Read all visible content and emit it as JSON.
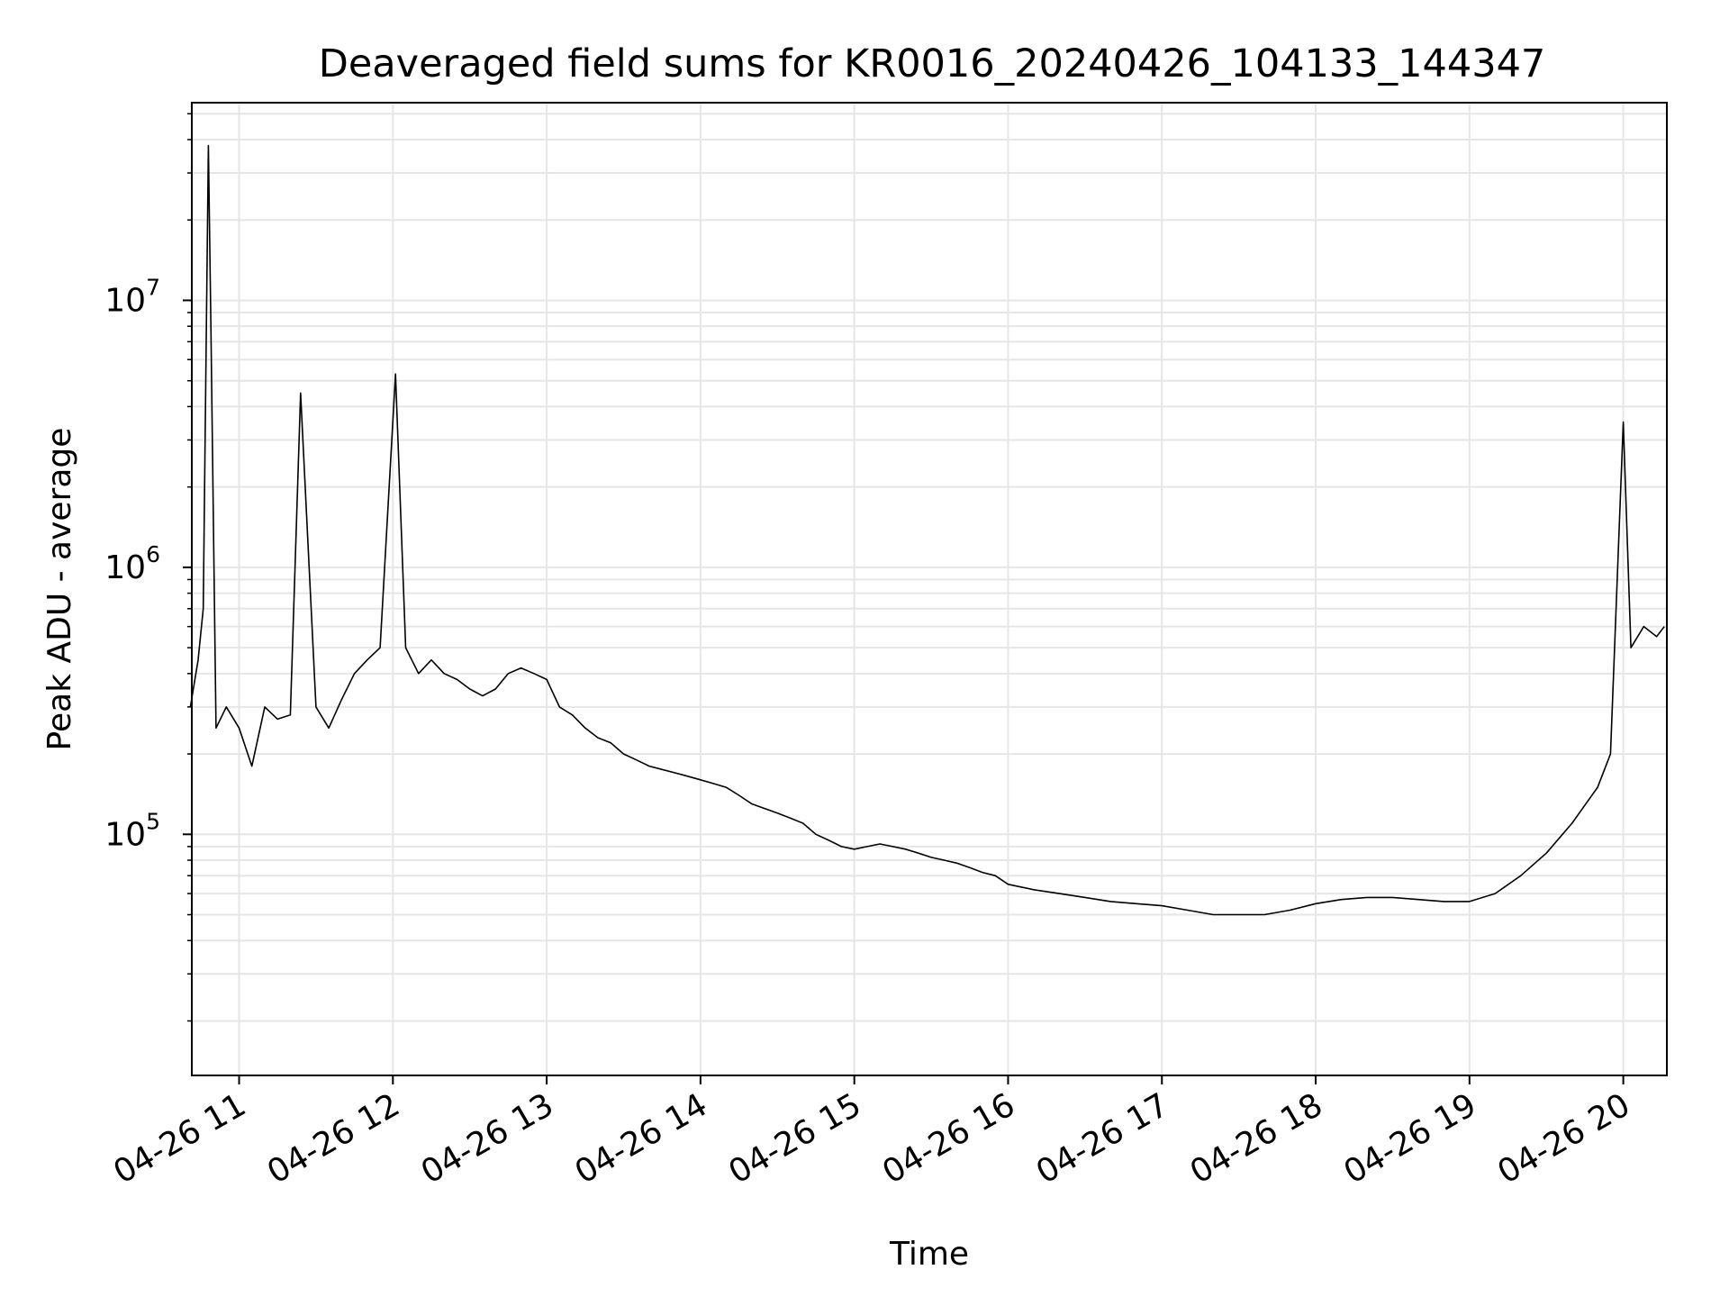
{
  "chart_data": {
    "type": "line",
    "title": "Deaveraged field sums for KR0016_20240426_104133_144347",
    "xlabel": "Time",
    "ylabel": "Peak ADU - average",
    "yscale": "log",
    "grid": true,
    "line_color": "#000000",
    "grid_color": "#e6e6e6",
    "xlim": [
      "2024-04-26T10:41:33",
      "2024-04-26T20:17:00"
    ],
    "ylim": [
      12500,
      55000000
    ],
    "x_ticks": [
      {
        "t": "2024-04-26T11:00",
        "label": "04-26 11"
      },
      {
        "t": "2024-04-26T12:00",
        "label": "04-26 12"
      },
      {
        "t": "2024-04-26T13:00",
        "label": "04-26 13"
      },
      {
        "t": "2024-04-26T14:00",
        "label": "04-26 14"
      },
      {
        "t": "2024-04-26T15:00",
        "label": "04-26 15"
      },
      {
        "t": "2024-04-26T16:00",
        "label": "04-26 16"
      },
      {
        "t": "2024-04-26T17:00",
        "label": "04-26 17"
      },
      {
        "t": "2024-04-26T18:00",
        "label": "04-26 18"
      },
      {
        "t": "2024-04-26T19:00",
        "label": "04-26 19"
      },
      {
        "t": "2024-04-26T20:00",
        "label": "04-26 20"
      }
    ],
    "y_ticks": [
      {
        "value": 100000,
        "base": "10",
        "exp": "5"
      },
      {
        "value": 1000000,
        "base": "10",
        "exp": "6"
      },
      {
        "value": 10000000,
        "base": "10",
        "exp": "7"
      }
    ],
    "series": [
      {
        "points": [
          [
            "2024-04-26T10:41",
            300000
          ],
          [
            "2024-04-26T10:44",
            450000
          ],
          [
            "2024-04-26T10:46",
            700000
          ],
          [
            "2024-04-26T10:48",
            38000000
          ],
          [
            "2024-04-26T10:49",
            8000000
          ],
          [
            "2024-04-26T10:51",
            250000
          ],
          [
            "2024-04-26T10:55",
            300000
          ],
          [
            "2024-04-26T11:00",
            250000
          ],
          [
            "2024-04-26T11:05",
            180000
          ],
          [
            "2024-04-26T11:10",
            300000
          ],
          [
            "2024-04-26T11:15",
            270000
          ],
          [
            "2024-04-26T11:20",
            280000
          ],
          [
            "2024-04-26T11:24",
            4500000
          ],
          [
            "2024-04-26T11:30",
            300000
          ],
          [
            "2024-04-26T11:35",
            250000
          ],
          [
            "2024-04-26T11:40",
            320000
          ],
          [
            "2024-04-26T11:45",
            400000
          ],
          [
            "2024-04-26T11:50",
            450000
          ],
          [
            "2024-04-26T11:55",
            500000
          ],
          [
            "2024-04-26T12:01",
            5300000
          ],
          [
            "2024-04-26T12:05",
            500000
          ],
          [
            "2024-04-26T12:10",
            400000
          ],
          [
            "2024-04-26T12:15",
            450000
          ],
          [
            "2024-04-26T12:20",
            400000
          ],
          [
            "2024-04-26T12:25",
            380000
          ],
          [
            "2024-04-26T12:30",
            350000
          ],
          [
            "2024-04-26T12:35",
            330000
          ],
          [
            "2024-04-26T12:40",
            350000
          ],
          [
            "2024-04-26T12:45",
            400000
          ],
          [
            "2024-04-26T12:50",
            420000
          ],
          [
            "2024-04-26T12:55",
            400000
          ],
          [
            "2024-04-26T13:00",
            380000
          ],
          [
            "2024-04-26T13:05",
            300000
          ],
          [
            "2024-04-26T13:10",
            280000
          ],
          [
            "2024-04-26T13:15",
            250000
          ],
          [
            "2024-04-26T13:20",
            230000
          ],
          [
            "2024-04-26T13:25",
            220000
          ],
          [
            "2024-04-26T13:30",
            200000
          ],
          [
            "2024-04-26T13:35",
            190000
          ],
          [
            "2024-04-26T13:40",
            180000
          ],
          [
            "2024-04-26T13:45",
            175000
          ],
          [
            "2024-04-26T13:50",
            170000
          ],
          [
            "2024-04-26T13:55",
            165000
          ],
          [
            "2024-04-26T14:00",
            160000
          ],
          [
            "2024-04-26T14:05",
            155000
          ],
          [
            "2024-04-26T14:10",
            150000
          ],
          [
            "2024-04-26T14:15",
            140000
          ],
          [
            "2024-04-26T14:20",
            130000
          ],
          [
            "2024-04-26T14:25",
            125000
          ],
          [
            "2024-04-26T14:30",
            120000
          ],
          [
            "2024-04-26T14:35",
            115000
          ],
          [
            "2024-04-26T14:40",
            110000
          ],
          [
            "2024-04-26T14:45",
            100000
          ],
          [
            "2024-04-26T14:50",
            95000
          ],
          [
            "2024-04-26T14:55",
            90000
          ],
          [
            "2024-04-26T15:00",
            88000
          ],
          [
            "2024-04-26T15:05",
            90000
          ],
          [
            "2024-04-26T15:10",
            92000
          ],
          [
            "2024-04-26T15:15",
            90000
          ],
          [
            "2024-04-26T15:20",
            88000
          ],
          [
            "2024-04-26T15:25",
            85000
          ],
          [
            "2024-04-26T15:30",
            82000
          ],
          [
            "2024-04-26T15:35",
            80000
          ],
          [
            "2024-04-26T15:40",
            78000
          ],
          [
            "2024-04-26T15:45",
            75000
          ],
          [
            "2024-04-26T15:50",
            72000
          ],
          [
            "2024-04-26T15:55",
            70000
          ],
          [
            "2024-04-26T16:00",
            65000
          ],
          [
            "2024-04-26T16:10",
            62000
          ],
          [
            "2024-04-26T16:20",
            60000
          ],
          [
            "2024-04-26T16:30",
            58000
          ],
          [
            "2024-04-26T16:40",
            56000
          ],
          [
            "2024-04-26T16:50",
            55000
          ],
          [
            "2024-04-26T17:00",
            54000
          ],
          [
            "2024-04-26T17:10",
            52000
          ],
          [
            "2024-04-26T17:20",
            50000
          ],
          [
            "2024-04-26T17:30",
            50000
          ],
          [
            "2024-04-26T17:40",
            50000
          ],
          [
            "2024-04-26T17:50",
            52000
          ],
          [
            "2024-04-26T18:00",
            55000
          ],
          [
            "2024-04-26T18:10",
            57000
          ],
          [
            "2024-04-26T18:20",
            58000
          ],
          [
            "2024-04-26T18:30",
            58000
          ],
          [
            "2024-04-26T18:40",
            57000
          ],
          [
            "2024-04-26T18:50",
            56000
          ],
          [
            "2024-04-26T19:00",
            56000
          ],
          [
            "2024-04-26T19:10",
            60000
          ],
          [
            "2024-04-26T19:20",
            70000
          ],
          [
            "2024-04-26T19:30",
            85000
          ],
          [
            "2024-04-26T19:40",
            110000
          ],
          [
            "2024-04-26T19:50",
            150000
          ],
          [
            "2024-04-26T19:55",
            200000
          ],
          [
            "2024-04-26T20:00",
            3500000
          ],
          [
            "2024-04-26T20:03",
            500000
          ],
          [
            "2024-04-26T20:08",
            600000
          ],
          [
            "2024-04-26T20:13",
            550000
          ],
          [
            "2024-04-26T20:16",
            600000
          ]
        ]
      }
    ]
  }
}
